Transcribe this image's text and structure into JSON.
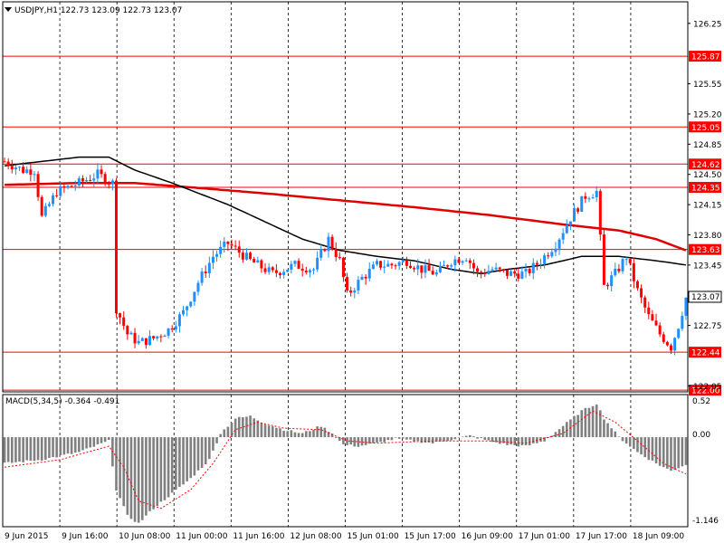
{
  "header": {
    "symbol_line": "USDJPY,H1  122.73 123.09 122.73 123.07",
    "current_price": "123.07"
  },
  "macd": {
    "title": "MACD(5,34,5) -0.364 -0.491",
    "tick_top": "0.52",
    "tick_zero": "0.00",
    "tick_bottom": "-1.146"
  },
  "chart_data": {
    "type": "candlestick",
    "price_ticks": [
      126.25,
      125.55,
      125.2,
      124.85,
      124.5,
      124.15,
      123.8,
      123.45,
      122.75,
      122.05
    ],
    "ylim": [
      121.98,
      126.5
    ],
    "levels": [
      125.87,
      125.05,
      124.62,
      124.35,
      123.63,
      122.44,
      122.0
    ],
    "level_labels": [
      "125.87",
      "125.05",
      "124.62",
      "124.35",
      "123.63",
      "122.44",
      "122.00"
    ],
    "x_labels": [
      "9 Jun 2015",
      "9 Jun 16:00",
      "10 Jun 08:00",
      "11 Jun 00:00",
      "11 Jun 16:00",
      "12 Jun 08:00",
      "15 Jun 01:00",
      "15 Jun 17:00",
      "16 Jun 09:00",
      "17 Jun 01:00",
      "17 Jun 17:00",
      "18 Jun 09:00"
    ],
    "colors": {
      "bull": "#1e90ff",
      "bear": "#ff0000",
      "ma_fast": "#000000",
      "ma_slow": "#e00000",
      "level": "#ff0000",
      "hist": "#808080",
      "signal": "#ff0000"
    },
    "price_anchors": [
      [
        0,
        124.65
      ],
      [
        5,
        124.55
      ],
      [
        8,
        124.55
      ],
      [
        10,
        124.0
      ],
      [
        14,
        124.3
      ],
      [
        20,
        124.4
      ],
      [
        25,
        124.5
      ],
      [
        29,
        124.4
      ],
      [
        30,
        122.95
      ],
      [
        33,
        122.65
      ],
      [
        36,
        122.55
      ],
      [
        40,
        122.6
      ],
      [
        44,
        122.7
      ],
      [
        48,
        122.9
      ],
      [
        52,
        123.25
      ],
      [
        56,
        123.55
      ],
      [
        60,
        123.7
      ],
      [
        66,
        123.5
      ],
      [
        72,
        123.35
      ],
      [
        78,
        123.45
      ],
      [
        83,
        123.4
      ],
      [
        87,
        123.75
      ],
      [
        90,
        123.5
      ],
      [
        92,
        123.1
      ],
      [
        96,
        123.3
      ],
      [
        100,
        123.45
      ],
      [
        104,
        123.45
      ],
      [
        108,
        123.5
      ],
      [
        112,
        123.4
      ],
      [
        116,
        123.35
      ],
      [
        120,
        123.5
      ],
      [
        124,
        123.55
      ],
      [
        127,
        123.35
      ],
      [
        131,
        123.4
      ],
      [
        135,
        123.35
      ],
      [
        140,
        123.35
      ],
      [
        144,
        123.5
      ],
      [
        148,
        123.7
      ],
      [
        152,
        124.0
      ],
      [
        156,
        124.25
      ],
      [
        159,
        124.3
      ],
      [
        161,
        123.2
      ],
      [
        164,
        123.35
      ],
      [
        167,
        123.55
      ],
      [
        170,
        123.15
      ],
      [
        173,
        122.85
      ],
      [
        176,
        122.65
      ],
      [
        179,
        122.5
      ],
      [
        181,
        122.75
      ],
      [
        183,
        123.07
      ]
    ],
    "ma_fast_anchors": [
      [
        0,
        124.6
      ],
      [
        10,
        124.65
      ],
      [
        20,
        124.7
      ],
      [
        28,
        124.7
      ],
      [
        35,
        124.55
      ],
      [
        45,
        124.4
      ],
      [
        60,
        124.15
      ],
      [
        70,
        123.95
      ],
      [
        80,
        123.75
      ],
      [
        90,
        123.62
      ],
      [
        100,
        123.55
      ],
      [
        110,
        123.5
      ],
      [
        120,
        123.4
      ],
      [
        128,
        123.35
      ],
      [
        135,
        123.4
      ],
      [
        145,
        123.45
      ],
      [
        155,
        123.55
      ],
      [
        165,
        123.55
      ],
      [
        175,
        123.5
      ],
      [
        183,
        123.45
      ]
    ],
    "ma_slow_anchors": [
      [
        0,
        124.38
      ],
      [
        20,
        124.4
      ],
      [
        35,
        124.4
      ],
      [
        50,
        124.35
      ],
      [
        70,
        124.28
      ],
      [
        90,
        124.2
      ],
      [
        110,
        124.12
      ],
      [
        130,
        124.03
      ],
      [
        150,
        123.92
      ],
      [
        165,
        123.85
      ],
      [
        175,
        123.75
      ],
      [
        183,
        123.62
      ]
    ],
    "macd_anchors": [
      [
        0,
        -0.35
      ],
      [
        10,
        -0.3
      ],
      [
        20,
        -0.2
      ],
      [
        28,
        -0.05
      ],
      [
        30,
        -0.7
      ],
      [
        33,
        -1.05
      ],
      [
        36,
        -1.15
      ],
      [
        40,
        -0.95
      ],
      [
        45,
        -0.75
      ],
      [
        50,
        -0.55
      ],
      [
        55,
        -0.3
      ],
      [
        58,
        0.05
      ],
      [
        62,
        0.25
      ],
      [
        66,
        0.28
      ],
      [
        70,
        0.18
      ],
      [
        75,
        0.1
      ],
      [
        80,
        0.05
      ],
      [
        85,
        0.15
      ],
      [
        88,
        0.05
      ],
      [
        91,
        -0.1
      ],
      [
        95,
        -0.12
      ],
      [
        100,
        -0.08
      ],
      [
        105,
        -0.02
      ],
      [
        110,
        -0.05
      ],
      [
        115,
        -0.08
      ],
      [
        120,
        -0.03
      ],
      [
        125,
        0.02
      ],
      [
        130,
        -0.05
      ],
      [
        135,
        -0.1
      ],
      [
        140,
        -0.12
      ],
      [
        145,
        -0.05
      ],
      [
        150,
        0.15
      ],
      [
        155,
        0.35
      ],
      [
        159,
        0.45
      ],
      [
        161,
        0.25
      ],
      [
        165,
        0.0
      ],
      [
        170,
        -0.2
      ],
      [
        175,
        -0.35
      ],
      [
        179,
        -0.45
      ],
      [
        183,
        -0.364
      ]
    ],
    "signal_anchors": [
      [
        0,
        -0.4
      ],
      [
        15,
        -0.3
      ],
      [
        28,
        -0.12
      ],
      [
        32,
        -0.4
      ],
      [
        36,
        -0.85
      ],
      [
        42,
        -0.95
      ],
      [
        50,
        -0.7
      ],
      [
        56,
        -0.35
      ],
      [
        62,
        0.1
      ],
      [
        68,
        0.2
      ],
      [
        75,
        0.12
      ],
      [
        85,
        0.1
      ],
      [
        92,
        -0.05
      ],
      [
        100,
        -0.08
      ],
      [
        115,
        -0.05
      ],
      [
        130,
        -0.05
      ],
      [
        140,
        -0.08
      ],
      [
        150,
        0.05
      ],
      [
        158,
        0.35
      ],
      [
        164,
        0.2
      ],
      [
        170,
        -0.05
      ],
      [
        177,
        -0.35
      ],
      [
        183,
        -0.491
      ]
    ]
  }
}
